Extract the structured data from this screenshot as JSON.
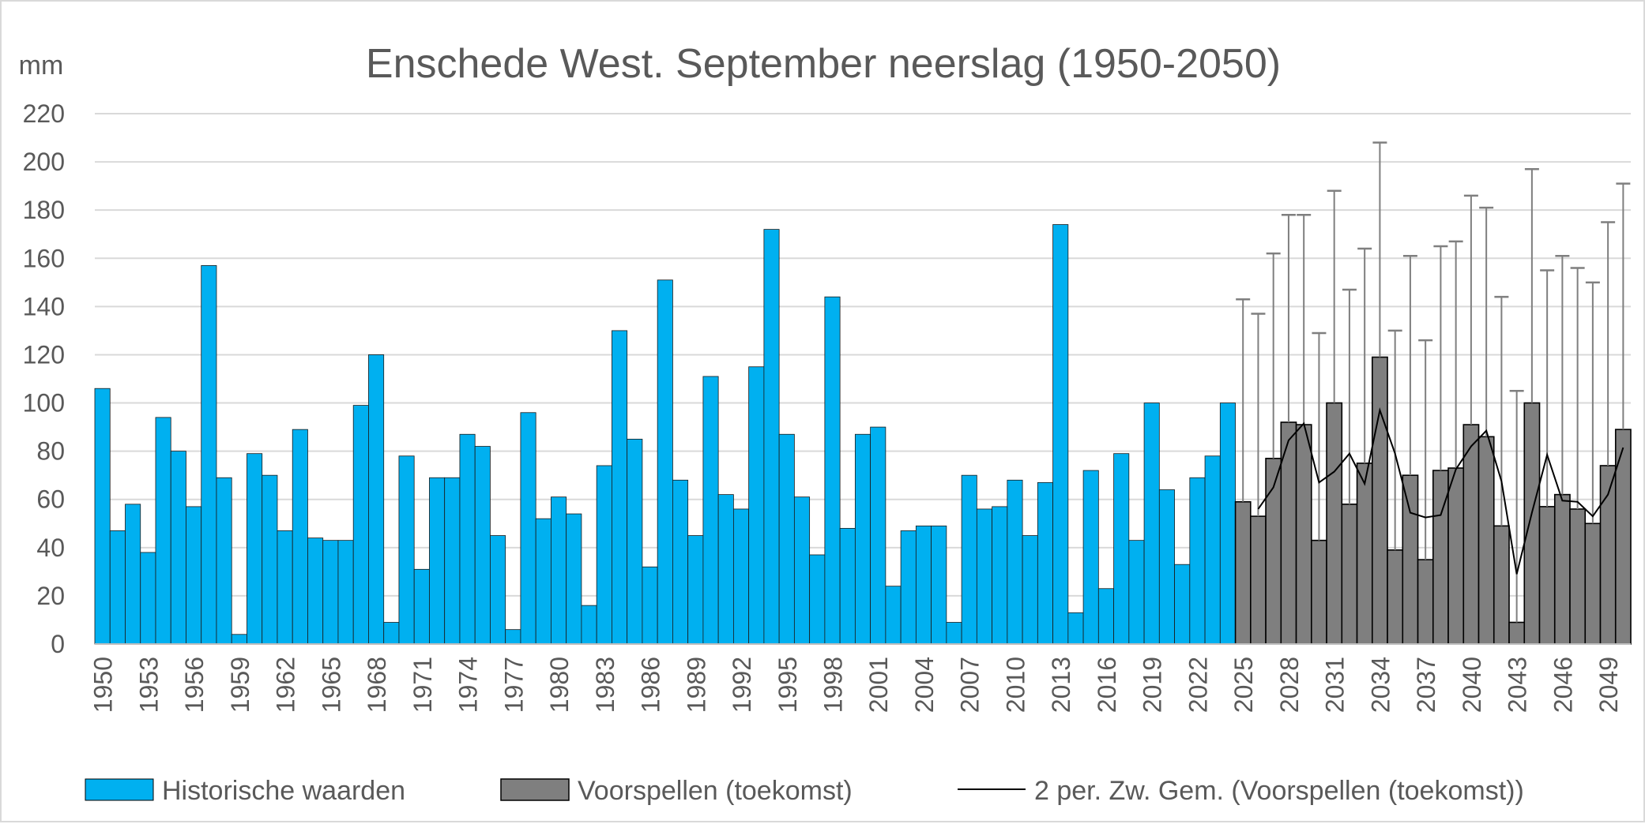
{
  "chart_data": {
    "type": "bar",
    "title": "Enschede West. September neerslag (1950-2050)",
    "ylabel": "mm",
    "xlabel": "",
    "ylim": [
      0,
      220
    ],
    "yticks": [
      0,
      20,
      40,
      60,
      80,
      100,
      120,
      140,
      160,
      180,
      200,
      220
    ],
    "xtick_labels": [
      "1950",
      "1953",
      "1956",
      "1959",
      "1962",
      "1965",
      "1968",
      "1971",
      "1974",
      "1977",
      "1980",
      "1983",
      "1986",
      "1989",
      "1992",
      "1995",
      "1998",
      "2001",
      "2004",
      "2007",
      "2010",
      "2013",
      "2016",
      "2019",
      "2022",
      "2025",
      "2028",
      "2031",
      "2034",
      "2037",
      "2040",
      "2043",
      "2046",
      "2049"
    ],
    "grid": true,
    "legend_position": "bottom",
    "colors": {
      "historical": "#00b0f0",
      "forecast": "#7f7f7f",
      "moving_average": "#000000",
      "error_bar": "#7f7f7f",
      "grid": "#d9d9d9",
      "text": "#595959"
    },
    "series": [
      {
        "name": "Historische waarden",
        "start_year": 1950,
        "values": [
          106,
          47,
          58,
          38,
          94,
          80,
          57,
          157,
          69,
          4,
          79,
          70,
          47,
          89,
          44,
          43,
          43,
          99,
          120,
          9,
          78,
          31,
          69,
          69,
          87,
          82,
          45,
          6,
          96,
          52,
          61,
          54,
          16,
          74,
          130,
          85,
          32,
          151,
          68,
          45,
          111,
          62,
          56,
          115,
          172,
          87,
          61,
          37,
          144,
          48,
          87,
          90,
          24,
          47,
          49,
          49,
          9,
          70,
          56,
          57,
          68,
          45,
          67,
          174,
          13,
          72,
          23,
          79,
          43,
          100,
          64,
          33,
          69,
          78,
          100
        ]
      },
      {
        "name": "Voorspellen (toekomst)",
        "start_year": 2025,
        "values": [
          59,
          53,
          77,
          92,
          91,
          43,
          100,
          58,
          75,
          119,
          39,
          70,
          35,
          72,
          73,
          91,
          86,
          49,
          9,
          100,
          57,
          62,
          56,
          50,
          74,
          89
        ],
        "error_upper": [
          143,
          137,
          162,
          178,
          178,
          129,
          188,
          147,
          164,
          208,
          130,
          161,
          126,
          165,
          167,
          186,
          181,
          144,
          105,
          197,
          155,
          161,
          156,
          150,
          175,
          191
        ]
      },
      {
        "name": "2 per. Zw. Gem. (Voorspellen (toekomst))",
        "start_year": 2026,
        "values": [
          56,
          65,
          84.5,
          91.5,
          67,
          71.5,
          79,
          66.5,
          97,
          79,
          54.5,
          52.5,
          53.5,
          72.5,
          82,
          88.5,
          67.5,
          29,
          54.5,
          78.5,
          59.5,
          59,
          53,
          62,
          81.5
        ]
      }
    ]
  }
}
